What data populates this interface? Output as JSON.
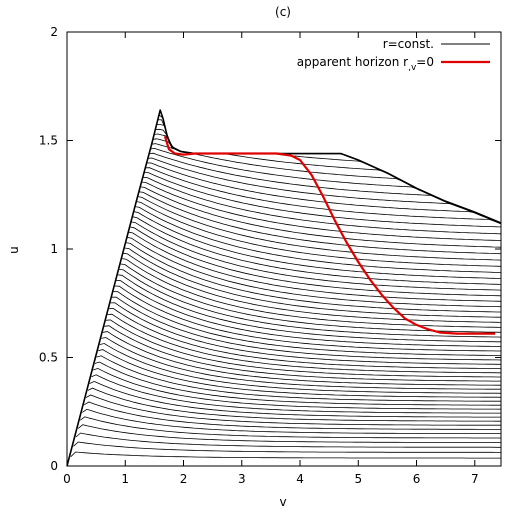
{
  "chart_data": {
    "type": "line",
    "title": "(c)",
    "xlabel": "v",
    "ylabel": "u",
    "xlim": [
      0,
      7.45
    ],
    "ylim": [
      0,
      2
    ],
    "xticks": [
      0,
      1,
      2,
      3,
      4,
      5,
      6,
      7
    ],
    "yticks": [
      0,
      0.5,
      1,
      1.5,
      2
    ],
    "xtick_labels": [
      "0",
      "1",
      "2",
      "3",
      "4",
      "5",
      "6",
      "7"
    ],
    "ytick_labels": [
      "0",
      "0.5",
      "1",
      "1.5",
      "2"
    ],
    "grid": false,
    "legend_position": "top-right",
    "legend": [
      {
        "label": "r=const.",
        "color": "#000000"
      },
      {
        "label": "apparent horizon r",
        "subscript": ",v",
        "suffix": "=0",
        "color": "#e00000"
      }
    ],
    "family": {
      "description": "constant-r contour family",
      "count": 60,
      "base_edge": {
        "v_start": 0.0,
        "u_start": 0.0,
        "v_apex": 1.6,
        "u_apex": 1.64
      }
    },
    "series": [
      {
        "name": "r=const.",
        "color": "#000000",
        "kind": "boundary",
        "x": [
          0.0,
          0.4,
          0.8,
          1.2,
          1.45,
          1.6,
          1.65,
          1.72,
          1.8,
          1.95,
          2.2,
          2.6,
          3.0,
          3.5,
          4.0,
          4.5,
          4.7,
          5.0,
          5.5,
          6.0,
          6.5,
          7.0,
          7.45
        ],
        "y": [
          0.0,
          0.41,
          0.82,
          1.23,
          1.48,
          1.64,
          1.6,
          1.52,
          1.47,
          1.45,
          1.44,
          1.44,
          1.44,
          1.44,
          1.44,
          1.44,
          1.44,
          1.41,
          1.35,
          1.28,
          1.22,
          1.17,
          1.12
        ]
      },
      {
        "name": "apparent horizon r,v=0",
        "color": "#e00000",
        "kind": "horizon",
        "x": [
          1.68,
          1.75,
          1.85,
          2.0,
          2.2,
          2.5,
          2.8,
          3.2,
          3.6,
          3.85,
          4.0,
          4.2,
          4.4,
          4.6,
          4.8,
          5.0,
          5.2,
          5.4,
          5.6,
          5.8,
          6.0,
          6.2,
          6.4,
          6.7,
          7.0,
          7.35
        ],
        "y": [
          1.52,
          1.46,
          1.44,
          1.435,
          1.44,
          1.44,
          1.44,
          1.44,
          1.44,
          1.43,
          1.41,
          1.34,
          1.24,
          1.13,
          1.03,
          0.94,
          0.86,
          0.79,
          0.73,
          0.68,
          0.65,
          0.63,
          0.615,
          0.61,
          0.61,
          0.61
        ]
      }
    ]
  }
}
